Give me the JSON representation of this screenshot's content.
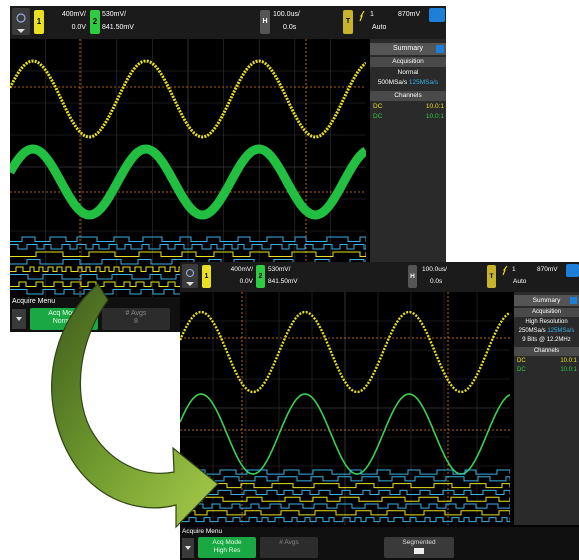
{
  "colors": {
    "ch1": "#e8e020",
    "ch2": "#2ecc40",
    "panel_accent": "#38b0e8",
    "softkey_active": "#1aa844"
  },
  "screens": [
    {
      "ch1": {
        "number": "1",
        "scale": "400mV/",
        "offset": "0.0V"
      },
      "ch2": {
        "number": "2",
        "scale": "530mV/",
        "offset": "841.50mV"
      },
      "horizontal": {
        "label": "H",
        "scale": "100.0us/",
        "position": "0.0s"
      },
      "trigger": {
        "label": "T",
        "channel": "1",
        "level": "870mV",
        "mode": "Auto"
      },
      "panel": {
        "tab": "Summary",
        "acquisition_title": "Acquisition",
        "mode": "Normal",
        "rate": "500MSa/s",
        "rate2": "125MSa/s",
        "extra": "",
        "channels_title": "Channels",
        "channels": [
          {
            "coupling": "DC",
            "value": "10.0:1"
          },
          {
            "coupling": "DC",
            "value": "10.0:1"
          }
        ]
      },
      "menu": {
        "title": "Acquire Menu",
        "acq_mode_label": "Acq Mode",
        "acq_mode_value": "Normal",
        "avgs_label": "# Avgs",
        "avgs_value": "8"
      }
    },
    {
      "ch1": {
        "number": "1",
        "scale": "400mV/",
        "offset": "0.0V"
      },
      "ch2": {
        "number": "2",
        "scale": "530mV/",
        "offset": "841.50mV"
      },
      "horizontal": {
        "label": "H",
        "scale": "100.0us/",
        "position": "0.0s"
      },
      "trigger": {
        "label": "T",
        "channel": "1",
        "level": "870mV",
        "mode": "Auto"
      },
      "panel": {
        "tab": "Summary",
        "acquisition_title": "Acquisition",
        "mode": "High Resolution",
        "rate": "250MSa/s",
        "rate2": "125MSa/s",
        "extra": "9 Bits @ 12.2MHz",
        "channels_title": "Channels",
        "channels": [
          {
            "coupling": "DC",
            "value": "10.0:1"
          },
          {
            "coupling": "DC",
            "value": "10.0:1"
          }
        ]
      },
      "menu": {
        "title": "Acquire Menu",
        "acq_mode_label": "Acq Mode",
        "acq_mode_value": "High Res",
        "avgs_label": "# Avgs",
        "avgs_value": "",
        "segmented_label": "Segmented"
      }
    }
  ]
}
